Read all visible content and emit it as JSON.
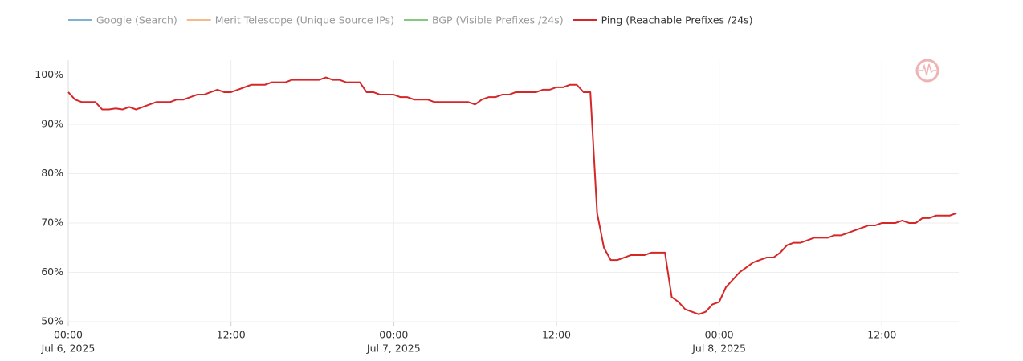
{
  "chart_data": {
    "type": "line",
    "hidden_series": [
      {
        "name": "Google (Search)",
        "color": "#7fb3d5"
      },
      {
        "name": "Merit Telescope (Unique Source IPs)",
        "color": "#f5b98a"
      },
      {
        "name": "BGP (Visible Prefixes /24s)",
        "color": "#82c982"
      }
    ],
    "x": [
      "2025-07-06 00:00",
      "2025-07-06 00:30",
      "2025-07-06 01:00",
      "2025-07-06 01:30",
      "2025-07-06 02:00",
      "2025-07-06 02:30",
      "2025-07-06 03:00",
      "2025-07-06 03:30",
      "2025-07-06 04:00",
      "2025-07-06 04:30",
      "2025-07-06 05:00",
      "2025-07-06 05:30",
      "2025-07-06 06:00",
      "2025-07-06 06:30",
      "2025-07-06 07:00",
      "2025-07-06 07:30",
      "2025-07-06 08:00",
      "2025-07-06 08:30",
      "2025-07-06 09:00",
      "2025-07-06 09:30",
      "2025-07-06 10:00",
      "2025-07-06 10:30",
      "2025-07-06 11:00",
      "2025-07-06 11:30",
      "2025-07-06 12:00",
      "2025-07-06 12:30",
      "2025-07-06 13:00",
      "2025-07-06 13:30",
      "2025-07-06 14:00",
      "2025-07-06 14:30",
      "2025-07-06 15:00",
      "2025-07-06 15:30",
      "2025-07-06 16:00",
      "2025-07-06 16:30",
      "2025-07-06 17:00",
      "2025-07-06 17:30",
      "2025-07-06 18:00",
      "2025-07-06 18:30",
      "2025-07-06 19:00",
      "2025-07-06 19:30",
      "2025-07-06 20:00",
      "2025-07-06 20:30",
      "2025-07-06 21:00",
      "2025-07-06 21:30",
      "2025-07-06 22:00",
      "2025-07-06 22:30",
      "2025-07-06 23:00",
      "2025-07-06 23:30",
      "2025-07-07 00:00",
      "2025-07-07 00:30",
      "2025-07-07 01:00",
      "2025-07-07 01:30",
      "2025-07-07 02:00",
      "2025-07-07 02:30",
      "2025-07-07 03:00",
      "2025-07-07 03:30",
      "2025-07-07 04:00",
      "2025-07-07 04:30",
      "2025-07-07 05:00",
      "2025-07-07 05:30",
      "2025-07-07 06:00",
      "2025-07-07 06:30",
      "2025-07-07 07:00",
      "2025-07-07 07:30",
      "2025-07-07 08:00",
      "2025-07-07 08:30",
      "2025-07-07 09:00",
      "2025-07-07 09:30",
      "2025-07-07 10:00",
      "2025-07-07 10:30",
      "2025-07-07 11:00",
      "2025-07-07 11:30",
      "2025-07-07 12:00",
      "2025-07-07 12:30",
      "2025-07-07 13:00",
      "2025-07-07 13:30",
      "2025-07-07 14:00",
      "2025-07-07 14:30",
      "2025-07-07 15:00",
      "2025-07-07 15:30",
      "2025-07-07 16:00",
      "2025-07-07 16:30",
      "2025-07-07 17:00",
      "2025-07-07 17:30",
      "2025-07-07 18:00",
      "2025-07-07 18:30",
      "2025-07-07 19:00",
      "2025-07-07 19:30",
      "2025-07-07 20:00",
      "2025-07-07 20:30",
      "2025-07-07 21:00",
      "2025-07-07 21:30",
      "2025-07-07 22:00",
      "2025-07-07 22:30",
      "2025-07-07 23:00",
      "2025-07-07 23:30",
      "2025-07-08 00:00",
      "2025-07-08 00:30",
      "2025-07-08 01:00",
      "2025-07-08 01:30",
      "2025-07-08 02:00",
      "2025-07-08 02:30",
      "2025-07-08 03:00",
      "2025-07-08 03:30",
      "2025-07-08 04:00",
      "2025-07-08 04:30",
      "2025-07-08 05:00",
      "2025-07-08 05:30",
      "2025-07-08 06:00",
      "2025-07-08 06:30",
      "2025-07-08 07:00",
      "2025-07-08 07:30",
      "2025-07-08 08:00",
      "2025-07-08 08:30",
      "2025-07-08 09:00",
      "2025-07-08 09:30",
      "2025-07-08 10:00",
      "2025-07-08 10:30",
      "2025-07-08 11:00",
      "2025-07-08 11:30",
      "2025-07-08 12:00",
      "2025-07-08 12:30",
      "2025-07-08 13:00",
      "2025-07-08 13:30",
      "2025-07-08 14:00",
      "2025-07-08 14:30",
      "2025-07-08 15:00",
      "2025-07-08 15:30",
      "2025-07-08 16:00",
      "2025-07-08 16:30",
      "2025-07-08 17:00",
      "2025-07-08 17:30"
    ],
    "series": [
      {
        "name": "Ping (Reachable Prefixes /24s)",
        "color": "#d62728",
        "values": [
          96.5,
          95,
          94.5,
          94.5,
          94.5,
          93,
          93,
          93.2,
          93,
          93.5,
          93,
          93.5,
          94,
          94.5,
          94.5,
          94.5,
          95,
          95,
          95.5,
          96,
          96,
          96.5,
          97,
          96.5,
          96.5,
          97,
          97.5,
          98,
          98,
          98,
          98.5,
          98.5,
          98.5,
          99,
          99,
          99,
          99,
          99,
          99.5,
          99,
          99,
          98.5,
          98.5,
          98.5,
          96.5,
          96.5,
          96,
          96,
          96,
          95.5,
          95.5,
          95,
          95,
          95,
          94.5,
          94.5,
          94.5,
          94.5,
          94.5,
          94.5,
          94,
          95,
          95.5,
          95.5,
          96,
          96,
          96.5,
          96.5,
          96.5,
          96.5,
          97,
          97,
          97.5,
          97.5,
          98,
          98,
          96.5,
          96.5,
          72,
          65,
          62.5,
          62.5,
          63,
          63.5,
          63.5,
          63.5,
          64,
          64,
          64,
          55,
          54,
          52.5,
          52,
          51.5,
          52,
          53.5,
          54,
          57,
          58.5,
          60,
          61,
          62,
          62.5,
          63,
          63,
          64,
          65.5,
          66,
          66,
          66.5,
          67,
          67,
          67,
          67.5,
          67.5,
          68,
          68.5,
          69,
          69.5,
          69.5,
          70,
          70,
          70,
          70.5,
          70,
          70,
          71,
          71,
          71.5,
          71.5,
          71.5,
          72
        ]
      }
    ],
    "xlim": [
      "2025-07-06 00:00",
      "2025-07-08 17:40"
    ],
    "xticks": [
      {
        "value": "2025-07-06 00:00",
        "label": [
          "00:00",
          "Jul 6, 2025"
        ]
      },
      {
        "value": "2025-07-06 12:00",
        "label": [
          "12:00"
        ]
      },
      {
        "value": "2025-07-07 00:00",
        "label": [
          "00:00",
          "Jul 7, 2025"
        ]
      },
      {
        "value": "2025-07-07 12:00",
        "label": [
          "12:00"
        ]
      },
      {
        "value": "2025-07-08 00:00",
        "label": [
          "00:00",
          "Jul 8, 2025"
        ]
      },
      {
        "value": "2025-07-08 12:00",
        "label": [
          "12:00"
        ]
      }
    ],
    "ylim": [
      50,
      103
    ],
    "yticks": [
      {
        "value": 50,
        "label": "50%"
      },
      {
        "value": 60,
        "label": "60%"
      },
      {
        "value": 70,
        "label": "70%"
      },
      {
        "value": 80,
        "label": "80%"
      },
      {
        "value": 90,
        "label": "90%"
      },
      {
        "value": 100,
        "label": "100%"
      }
    ],
    "grid": true
  }
}
